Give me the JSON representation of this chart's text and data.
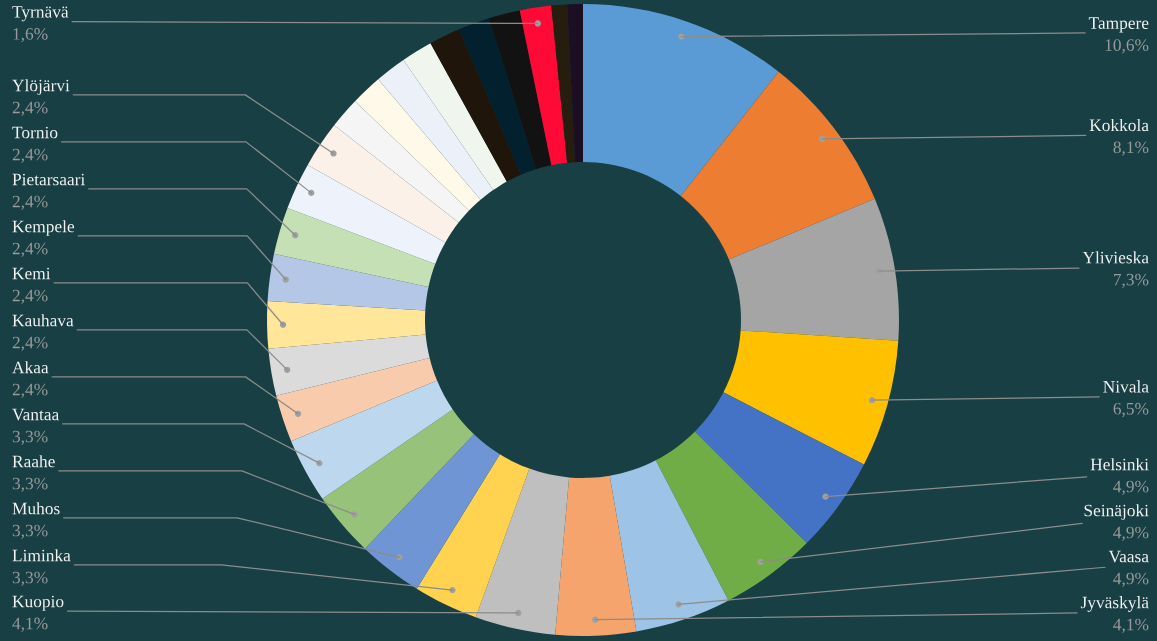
{
  "chart_data": {
    "type": "donut",
    "categories": [
      "Tampere",
      "Kokkola",
      "Ylivieska",
      "Nivala",
      "Helsinki",
      "Seinäjoki",
      "Vaasa",
      "Jyväskylä",
      "Kuopio",
      "Liminka",
      "Muhos",
      "Raahe",
      "Vantaa",
      "Akaa",
      "Kauhava",
      "Kemi",
      "Kempele",
      "Pietarsaari",
      "Tornio",
      "Ylöjärvi",
      null,
      null,
      null,
      null,
      null,
      null,
      null,
      "Tyrnävä",
      null,
      null
    ],
    "values": [
      10.6,
      8.1,
      7.3,
      6.5,
      4.9,
      4.9,
      4.9,
      4.1,
      4.1,
      3.3,
      3.3,
      3.3,
      3.3,
      2.4,
      2.4,
      2.4,
      2.4,
      2.4,
      2.4,
      2.4,
      1.6,
      1.6,
      1.6,
      1.6,
      1.6,
      1.6,
      1.6,
      1.6,
      0.8,
      0.8
    ],
    "value_labels": [
      "10,6%",
      "8,1%",
      "7,3%",
      "6,5%",
      "4,9%",
      "4,9%",
      "4,9%",
      "4,1%",
      "4,1%",
      "3,3%",
      "3,3%",
      "3,3%",
      "3,3%",
      "2,4%",
      "2,4%",
      "2,4%",
      "2,4%",
      "2,4%",
      "2,4%",
      "2,4%",
      null,
      null,
      null,
      null,
      null,
      null,
      null,
      "1,6%",
      null,
      null
    ],
    "colors": [
      "#5b9bd5",
      "#ed7d31",
      "#a5a5a5",
      "#ffc000",
      "#4472c4",
      "#70ad47",
      "#9dc3e6",
      "#f4a46c",
      "#bfbfbf",
      "#ffd34f",
      "#6f95d4",
      "#97c27a",
      "#bdd7ee",
      "#f8cbad",
      "#dbdbdb",
      "#ffe699",
      "#b4c7e7",
      "#c5e0b4",
      "#eef3fb",
      "#fbf1e9",
      "#f5f5f5",
      "#fef9e8",
      "#ebf0f9",
      "#f0f6ee",
      "#1f150b",
      "#03202e",
      "#121212",
      "#ff0a36",
      "#261d0e",
      "#1c0f24"
    ]
  }
}
